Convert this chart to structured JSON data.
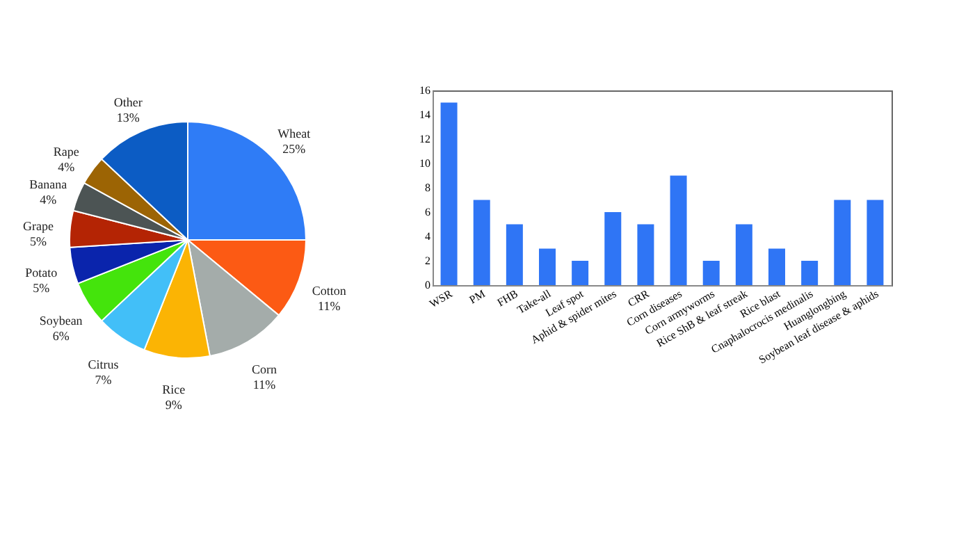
{
  "chart_data": [
    {
      "type": "pie",
      "categories": [
        "Wheat",
        "Cotton",
        "Corn",
        "Rice",
        "Citrus",
        "Soybean",
        "Potato",
        "Grape",
        "Banana",
        "Rape",
        "Other"
      ],
      "values": [
        25,
        11,
        11,
        9,
        7,
        6,
        5,
        5,
        4,
        4,
        13
      ],
      "colors": [
        "#2f7cf6",
        "#fc5a14",
        "#a4acaa",
        "#fbb404",
        "#42bff8",
        "#44e40c",
        "#0a24ac",
        "#b42404",
        "#4c5454",
        "#9c6404",
        "#0c5cc4"
      ],
      "value_labels": [
        "25%",
        "11%",
        "11%",
        "9%",
        "7%",
        "6%",
        "5%",
        "5%",
        "4%",
        "4%",
        "13%"
      ]
    },
    {
      "type": "bar",
      "categories": [
        "WSR",
        "PM",
        "FHB",
        "Take-all",
        "Leaf spot",
        "Aphid & spider mites",
        "CRR",
        "Corn diseases",
        "Corn armyworms",
        "Rice ShB & leaf streak",
        "Rice blast",
        "Cnaphalocrocis medinalis",
        "Huanglongbing",
        "Soybean leaf disease & aphids"
      ],
      "values": [
        15,
        7,
        5,
        3,
        2,
        6,
        5,
        9,
        2,
        5,
        3,
        2,
        7,
        7
      ],
      "color": "#2f75f5",
      "ylim": [
        0,
        16
      ],
      "yticks": [
        0,
        2,
        4,
        6,
        8,
        10,
        12,
        14,
        16
      ],
      "grid": false
    }
  ]
}
